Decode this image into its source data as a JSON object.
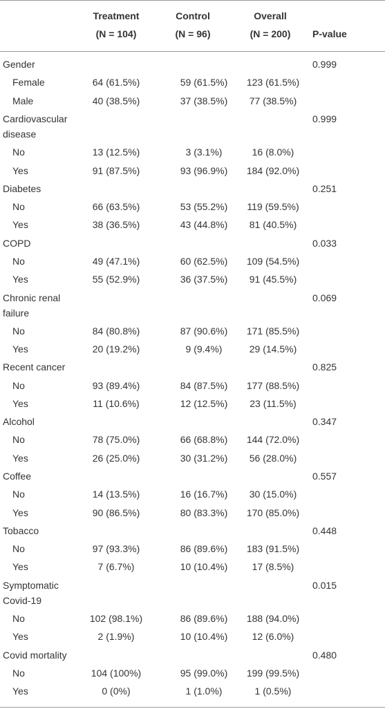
{
  "header": {
    "columns": [
      {
        "title": "Treatment",
        "n": "(N = 104)"
      },
      {
        "title": "Control",
        "n": "(N = 96)"
      },
      {
        "title": "Overall",
        "n": "(N = 200)"
      },
      {
        "title": "P-value"
      }
    ]
  },
  "groups": [
    {
      "label": "Gender",
      "p_value": "0.999",
      "rows": [
        {
          "label": "Female",
          "values": [
            "64 (61.5%)",
            "59 (61.5%)",
            "123 (61.5%)"
          ]
        },
        {
          "label": "Male",
          "values": [
            "40 (38.5%)",
            "37 (38.5%)",
            "77 (38.5%)"
          ]
        }
      ]
    },
    {
      "label": "Cardiovascular disease",
      "p_value": "0.999",
      "rows": [
        {
          "label": "No",
          "values": [
            "13 (12.5%)",
            "3 (3.1%)",
            "16 (8.0%)"
          ]
        },
        {
          "label": "Yes",
          "values": [
            "91 (87.5%)",
            "93 (96.9%)",
            "184 (92.0%)"
          ]
        }
      ]
    },
    {
      "label": "Diabetes",
      "p_value": "0.251",
      "rows": [
        {
          "label": "No",
          "values": [
            "66 (63.5%)",
            "53 (55.2%)",
            "119 (59.5%)"
          ]
        },
        {
          "label": "Yes",
          "values": [
            "38 (36.5%)",
            "43 (44.8%)",
            "81 (40.5%)"
          ]
        }
      ]
    },
    {
      "label": "COPD",
      "p_value": "0.033",
      "rows": [
        {
          "label": "No",
          "values": [
            "49 (47.1%)",
            "60 (62.5%)",
            "109 (54.5%)"
          ]
        },
        {
          "label": "Yes",
          "values": [
            "55 (52.9%)",
            "36 (37.5%)",
            "91 (45.5%)"
          ]
        }
      ]
    },
    {
      "label": "Chronic renal failure",
      "p_value": "0.069",
      "rows": [
        {
          "label": "No",
          "values": [
            "84 (80.8%)",
            "87 (90.6%)",
            "171 (85.5%)"
          ]
        },
        {
          "label": "Yes",
          "values": [
            "20 (19.2%)",
            "9 (9.4%)",
            "29 (14.5%)"
          ]
        }
      ]
    },
    {
      "label": "Recent cancer",
      "p_value": "0.825",
      "rows": [
        {
          "label": "No",
          "values": [
            "93 (89.4%)",
            "84 (87.5%)",
            "177 (88.5%)"
          ]
        },
        {
          "label": "Yes",
          "values": [
            "11 (10.6%)",
            "12 (12.5%)",
            "23 (11.5%)"
          ]
        }
      ]
    },
    {
      "label": "Alcohol",
      "p_value": "0.347",
      "rows": [
        {
          "label": "No",
          "values": [
            "78 (75.0%)",
            "66 (68.8%)",
            "144 (72.0%)"
          ]
        },
        {
          "label": "Yes",
          "values": [
            "26 (25.0%)",
            "30 (31.2%)",
            "56 (28.0%)"
          ]
        }
      ]
    },
    {
      "label": "Coffee",
      "p_value": "0.557",
      "rows": [
        {
          "label": "No",
          "values": [
            "14 (13.5%)",
            "16 (16.7%)",
            "30 (15.0%)"
          ]
        },
        {
          "label": "Yes",
          "values": [
            "90 (86.5%)",
            "80 (83.3%)",
            "170 (85.0%)"
          ]
        }
      ]
    },
    {
      "label": "Tobacco",
      "p_value": "0.448",
      "rows": [
        {
          "label": "No",
          "values": [
            "97 (93.3%)",
            "86 (89.6%)",
            "183 (91.5%)"
          ]
        },
        {
          "label": "Yes",
          "values": [
            "7 (6.7%)",
            "10 (10.4%)",
            "17 (8.5%)"
          ]
        }
      ]
    },
    {
      "label": "Symptomatic Covid-19",
      "p_value": "0.015",
      "rows": [
        {
          "label": "No",
          "values": [
            "102 (98.1%)",
            "86 (89.6%)",
            "188 (94.0%)"
          ]
        },
        {
          "label": "Yes",
          "values": [
            "2 (1.9%)",
            "10 (10.4%)",
            "12 (6.0%)"
          ]
        }
      ]
    },
    {
      "label": "Covid mortality",
      "p_value": "0.480",
      "rows": [
        {
          "label": "No",
          "values": [
            "104 (100%)",
            "95 (99.0%)",
            "199 (99.5%)"
          ]
        },
        {
          "label": "Yes",
          "values": [
            "0 (0%)",
            "1 (1.0%)",
            "1 (0.5%)"
          ]
        }
      ]
    }
  ]
}
